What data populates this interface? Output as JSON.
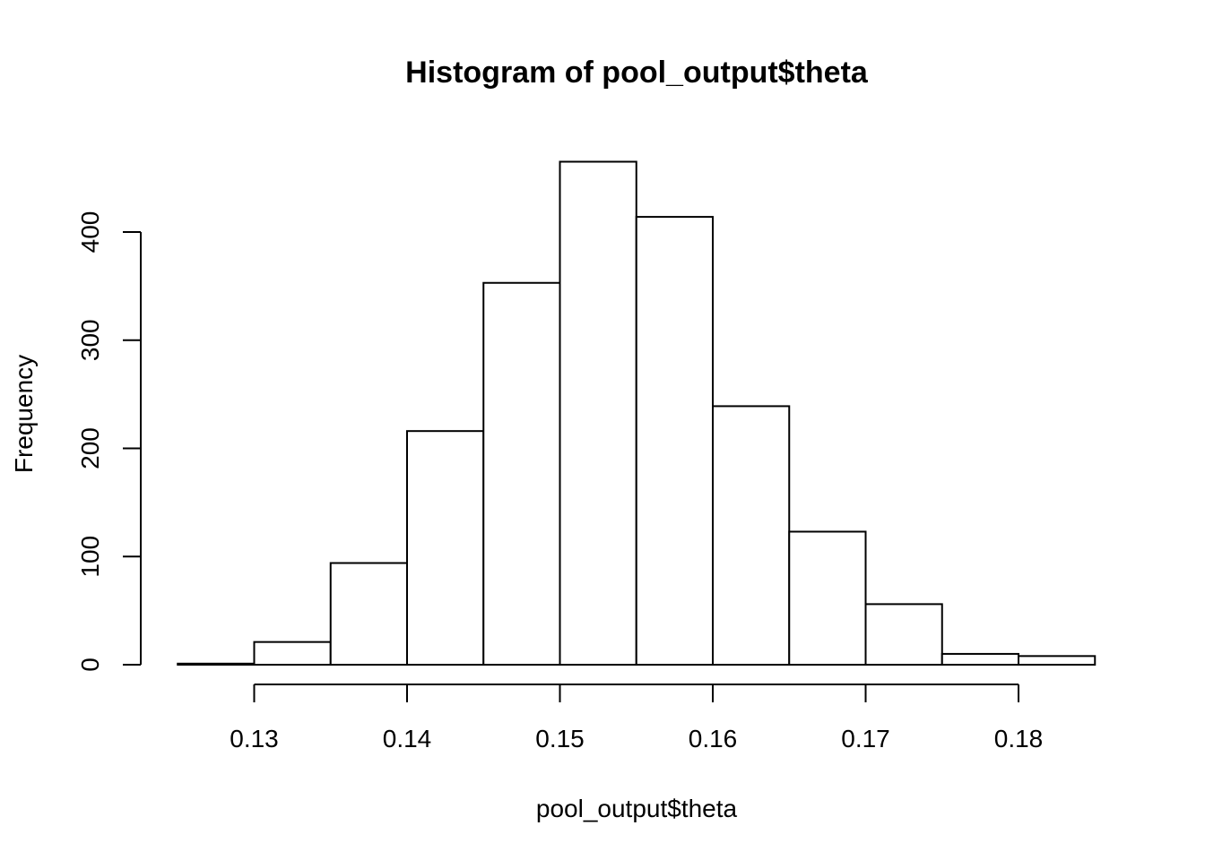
{
  "chart_data": {
    "type": "bar",
    "title": "Histogram of pool_output$theta",
    "xlabel": "pool_output$theta",
    "ylabel": "Frequency",
    "bins": [
      {
        "from": 0.125,
        "to": 0.13,
        "count": 1
      },
      {
        "from": 0.13,
        "to": 0.135,
        "count": 21
      },
      {
        "from": 0.135,
        "to": 0.14,
        "count": 94
      },
      {
        "from": 0.14,
        "to": 0.145,
        "count": 216
      },
      {
        "from": 0.145,
        "to": 0.15,
        "count": 353
      },
      {
        "from": 0.15,
        "to": 0.155,
        "count": 465
      },
      {
        "from": 0.155,
        "to": 0.16,
        "count": 414
      },
      {
        "from": 0.16,
        "to": 0.165,
        "count": 239
      },
      {
        "from": 0.165,
        "to": 0.17,
        "count": 123
      },
      {
        "from": 0.17,
        "to": 0.175,
        "count": 56
      },
      {
        "from": 0.175,
        "to": 0.18,
        "count": 10
      },
      {
        "from": 0.18,
        "to": 0.185,
        "count": 8
      }
    ],
    "xlim": [
      0.125,
      0.185
    ],
    "ylim": [
      0,
      465
    ],
    "x_ticks": [
      {
        "value": 0.13,
        "label": "0.13"
      },
      {
        "value": 0.14,
        "label": "0.14"
      },
      {
        "value": 0.15,
        "label": "0.15"
      },
      {
        "value": 0.16,
        "label": "0.16"
      },
      {
        "value": 0.17,
        "label": "0.17"
      },
      {
        "value": 0.18,
        "label": "0.18"
      }
    ],
    "y_ticks": [
      {
        "value": 0,
        "label": "0"
      },
      {
        "value": 100,
        "label": "100"
      },
      {
        "value": 200,
        "label": "200"
      },
      {
        "value": 300,
        "label": "300"
      },
      {
        "value": 400,
        "label": "400"
      }
    ],
    "grid": false,
    "colors": {
      "bar_fill": "#ffffff",
      "bar_stroke": "#000000"
    }
  }
}
